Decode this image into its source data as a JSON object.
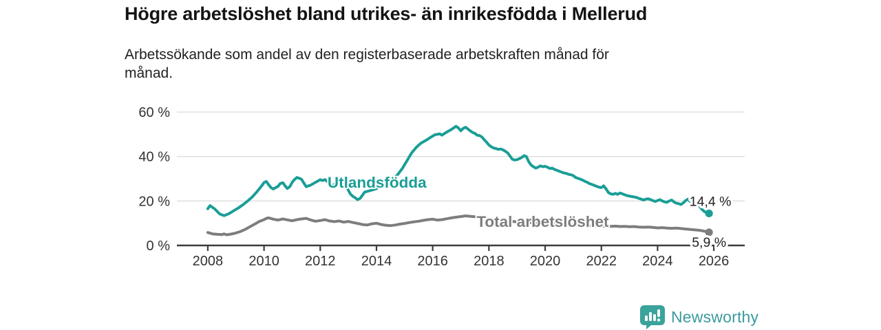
{
  "header": {
    "title": "Högre arbetslöshet bland utrikes- än inrikesfödda i Mellerud",
    "subtitle_line1": "Arbetssökande som andel av den registerbaserade arbetskraften månad för",
    "subtitle_line2": "månad."
  },
  "chart_data": {
    "type": "line",
    "title": "Högre arbetslöshet bland utrikes- än inrikesfödda i Mellerud",
    "subtitle": "Arbetssökande som andel av den registerbaserade arbetskraften månad för månad.",
    "xlabel": "",
    "ylabel": "",
    "xlim": [
      2006.9,
      2027.1
    ],
    "ylim": [
      0,
      60
    ],
    "grid": "horizontal",
    "legend": "inline-labels",
    "x_ticks": [
      2008,
      2010,
      2012,
      2014,
      2016,
      2018,
      2020,
      2022,
      2024,
      2026
    ],
    "y_ticks": [
      {
        "value": 0,
        "label": "0 %"
      },
      {
        "value": 20,
        "label": "20 %"
      },
      {
        "value": 40,
        "label": "40 %"
      },
      {
        "value": 60,
        "label": "60 %"
      }
    ],
    "axis_color": "#3b3b3b",
    "grid_color": "#dcdcdc",
    "series": [
      {
        "name": "Utlandsfödda",
        "color": "#1a9e96",
        "end_label": "14,4 %",
        "end_value": 14.4,
        "end_label_position": "above",
        "label_pos": {
          "year": 2012.26,
          "pct": 26.0
        },
        "points": [
          [
            2008.0,
            16.5
          ],
          [
            2008.08,
            17.9
          ],
          [
            2008.25,
            16.4
          ],
          [
            2008.42,
            14.2
          ],
          [
            2008.58,
            13.4
          ],
          [
            2008.75,
            14.3
          ],
          [
            2008.92,
            15.6
          ],
          [
            2009.08,
            16.8
          ],
          [
            2009.25,
            18.3
          ],
          [
            2009.42,
            20.0
          ],
          [
            2009.58,
            21.8
          ],
          [
            2009.75,
            24.2
          ],
          [
            2009.92,
            26.8
          ],
          [
            2010.0,
            28.3
          ],
          [
            2010.08,
            28.8
          ],
          [
            2010.17,
            27.2
          ],
          [
            2010.25,
            26.0
          ],
          [
            2010.33,
            25.4
          ],
          [
            2010.5,
            26.6
          ],
          [
            2010.58,
            27.9
          ],
          [
            2010.67,
            28.2
          ],
          [
            2010.75,
            26.8
          ],
          [
            2010.83,
            25.6
          ],
          [
            2010.92,
            26.5
          ],
          [
            2011.0,
            28.4
          ],
          [
            2011.08,
            29.6
          ],
          [
            2011.17,
            30.6
          ],
          [
            2011.25,
            30.2
          ],
          [
            2011.33,
            29.8
          ],
          [
            2011.42,
            28.0
          ],
          [
            2011.5,
            26.4
          ],
          [
            2011.58,
            26.8
          ],
          [
            2011.67,
            27.2
          ],
          [
            2011.75,
            27.8
          ],
          [
            2011.83,
            28.4
          ],
          [
            2011.92,
            29.0
          ],
          [
            2012.0,
            29.6
          ],
          [
            2012.08,
            29.2
          ],
          [
            2012.17,
            29.6
          ],
          [
            2012.25,
            28.8
          ],
          [
            2012.33,
            27.6
          ],
          [
            2012.42,
            26.8
          ],
          [
            2012.5,
            27.4
          ],
          [
            2012.58,
            28.0
          ],
          [
            2012.67,
            28.4
          ],
          [
            2012.75,
            28.0
          ],
          [
            2012.83,
            28.6
          ],
          [
            2012.92,
            27.0
          ],
          [
            2013.0,
            24.8
          ],
          [
            2013.08,
            23.0
          ],
          [
            2013.17,
            22.0
          ],
          [
            2013.25,
            21.4
          ],
          [
            2013.33,
            20.6
          ],
          [
            2013.42,
            21.2
          ],
          [
            2013.5,
            22.6
          ],
          [
            2013.58,
            24.0
          ],
          [
            2013.75,
            24.6
          ],
          [
            2013.92,
            25.2
          ],
          [
            2014.08,
            26.0
          ],
          [
            2014.25,
            27.0
          ],
          [
            2014.42,
            28.2
          ],
          [
            2014.58,
            29.8
          ],
          [
            2014.75,
            31.8
          ],
          [
            2014.92,
            34.6
          ],
          [
            2015.08,
            38.0
          ],
          [
            2015.25,
            41.6
          ],
          [
            2015.42,
            44.2
          ],
          [
            2015.58,
            46.0
          ],
          [
            2015.75,
            47.2
          ],
          [
            2015.92,
            48.6
          ],
          [
            2016.08,
            49.8
          ],
          [
            2016.25,
            50.2
          ],
          [
            2016.33,
            49.6
          ],
          [
            2016.5,
            51.0
          ],
          [
            2016.67,
            52.2
          ],
          [
            2016.83,
            53.6
          ],
          [
            2016.92,
            52.8
          ],
          [
            2017.0,
            51.6
          ],
          [
            2017.08,
            52.6
          ],
          [
            2017.17,
            53.2
          ],
          [
            2017.25,
            52.4
          ],
          [
            2017.33,
            51.6
          ],
          [
            2017.42,
            50.8
          ],
          [
            2017.5,
            50.4
          ],
          [
            2017.58,
            49.6
          ],
          [
            2017.67,
            49.4
          ],
          [
            2017.75,
            48.8
          ],
          [
            2017.83,
            47.6
          ],
          [
            2017.92,
            46.4
          ],
          [
            2018.0,
            45.2
          ],
          [
            2018.08,
            44.4
          ],
          [
            2018.17,
            43.8
          ],
          [
            2018.25,
            43.6
          ],
          [
            2018.33,
            43.2
          ],
          [
            2018.42,
            43.4
          ],
          [
            2018.5,
            43.0
          ],
          [
            2018.58,
            42.4
          ],
          [
            2018.67,
            41.6
          ],
          [
            2018.75,
            40.2
          ],
          [
            2018.83,
            38.8
          ],
          [
            2018.92,
            38.4
          ],
          [
            2019.0,
            38.6
          ],
          [
            2019.08,
            39.0
          ],
          [
            2019.17,
            39.6
          ],
          [
            2019.25,
            40.4
          ],
          [
            2019.33,
            40.0
          ],
          [
            2019.42,
            37.6
          ],
          [
            2019.5,
            36.2
          ],
          [
            2019.58,
            35.4
          ],
          [
            2019.67,
            34.8
          ],
          [
            2019.75,
            35.2
          ],
          [
            2019.83,
            35.8
          ],
          [
            2019.92,
            35.4
          ],
          [
            2020.0,
            35.6
          ],
          [
            2020.08,
            35.2
          ],
          [
            2020.17,
            34.6
          ],
          [
            2020.25,
            34.8
          ],
          [
            2020.33,
            34.2
          ],
          [
            2020.42,
            33.8
          ],
          [
            2020.5,
            33.4
          ],
          [
            2020.58,
            33.0
          ],
          [
            2020.67,
            32.6
          ],
          [
            2020.75,
            32.4
          ],
          [
            2020.83,
            32.0
          ],
          [
            2020.92,
            31.8
          ],
          [
            2021.0,
            31.4
          ],
          [
            2021.08,
            30.6
          ],
          [
            2021.17,
            30.2
          ],
          [
            2021.25,
            29.8
          ],
          [
            2021.33,
            29.4
          ],
          [
            2021.42,
            28.8
          ],
          [
            2021.5,
            28.4
          ],
          [
            2021.58,
            27.8
          ],
          [
            2021.67,
            27.4
          ],
          [
            2021.75,
            27.0
          ],
          [
            2021.83,
            26.6
          ],
          [
            2021.92,
            26.2
          ],
          [
            2022.0,
            26.0
          ],
          [
            2022.08,
            26.8
          ],
          [
            2022.17,
            25.4
          ],
          [
            2022.25,
            23.8
          ],
          [
            2022.33,
            23.2
          ],
          [
            2022.42,
            23.0
          ],
          [
            2022.5,
            23.4
          ],
          [
            2022.58,
            23.0
          ],
          [
            2022.67,
            23.6
          ],
          [
            2022.75,
            23.2
          ],
          [
            2022.83,
            22.8
          ],
          [
            2022.92,
            22.4
          ],
          [
            2023.0,
            22.2
          ],
          [
            2023.08,
            22.0
          ],
          [
            2023.17,
            21.8
          ],
          [
            2023.25,
            21.6
          ],
          [
            2023.33,
            21.2
          ],
          [
            2023.42,
            20.8
          ],
          [
            2023.5,
            20.4
          ],
          [
            2023.58,
            20.8
          ],
          [
            2023.67,
            21.0
          ],
          [
            2023.75,
            20.6
          ],
          [
            2023.83,
            20.2
          ],
          [
            2023.92,
            19.8
          ],
          [
            2024.0,
            20.2
          ],
          [
            2024.08,
            20.6
          ],
          [
            2024.17,
            20.0
          ],
          [
            2024.25,
            19.6
          ],
          [
            2024.33,
            19.4
          ],
          [
            2024.42,
            20.0
          ],
          [
            2024.5,
            20.4
          ],
          [
            2024.58,
            19.6
          ],
          [
            2024.67,
            19.0
          ],
          [
            2024.75,
            18.8
          ],
          [
            2024.83,
            18.4
          ],
          [
            2024.92,
            19.2
          ],
          [
            2025.0,
            20.2
          ],
          [
            2025.08,
            20.8
          ],
          [
            2025.17,
            19.6
          ],
          [
            2025.25,
            20.2
          ],
          [
            2025.33,
            19.4
          ],
          [
            2025.42,
            18.6
          ],
          [
            2025.5,
            17.4
          ],
          [
            2025.58,
            16.2
          ],
          [
            2025.67,
            15.2
          ],
          [
            2025.83,
            14.4
          ]
        ]
      },
      {
        "name": "Total arbetslöshet",
        "color": "#7d7d7d",
        "end_label": "5,9 %",
        "end_value": 5.9,
        "end_label_position": "below",
        "label_pos": {
          "year": 2017.56,
          "pct": 8.4
        },
        "points": [
          [
            2008.0,
            5.8
          ],
          [
            2008.17,
            5.2
          ],
          [
            2008.33,
            5.0
          ],
          [
            2008.5,
            4.9
          ],
          [
            2008.58,
            5.2
          ],
          [
            2008.67,
            4.8
          ],
          [
            2008.83,
            5.1
          ],
          [
            2009.0,
            5.6
          ],
          [
            2009.17,
            6.3
          ],
          [
            2009.33,
            7.2
          ],
          [
            2009.5,
            8.4
          ],
          [
            2009.67,
            9.6
          ],
          [
            2009.83,
            10.8
          ],
          [
            2010.0,
            11.6
          ],
          [
            2010.08,
            12.2
          ],
          [
            2010.17,
            12.4
          ],
          [
            2010.33,
            11.8
          ],
          [
            2010.5,
            11.4
          ],
          [
            2010.67,
            11.9
          ],
          [
            2010.83,
            11.5
          ],
          [
            2011.0,
            11.1
          ],
          [
            2011.17,
            11.6
          ],
          [
            2011.33,
            11.9
          ],
          [
            2011.5,
            12.2
          ],
          [
            2011.67,
            11.4
          ],
          [
            2011.83,
            10.9
          ],
          [
            2012.0,
            11.2
          ],
          [
            2012.17,
            11.6
          ],
          [
            2012.33,
            11.0
          ],
          [
            2012.5,
            10.7
          ],
          [
            2012.67,
            11.0
          ],
          [
            2012.83,
            10.5
          ],
          [
            2013.0,
            10.8
          ],
          [
            2013.17,
            10.3
          ],
          [
            2013.33,
            9.9
          ],
          [
            2013.5,
            9.4
          ],
          [
            2013.67,
            9.2
          ],
          [
            2013.83,
            9.7
          ],
          [
            2014.0,
            10.0
          ],
          [
            2014.17,
            9.4
          ],
          [
            2014.33,
            9.1
          ],
          [
            2014.5,
            8.9
          ],
          [
            2014.67,
            9.2
          ],
          [
            2014.83,
            9.6
          ],
          [
            2015.0,
            9.9
          ],
          [
            2015.17,
            10.3
          ],
          [
            2015.33,
            10.6
          ],
          [
            2015.5,
            10.9
          ],
          [
            2015.67,
            11.3
          ],
          [
            2015.83,
            11.6
          ],
          [
            2016.0,
            11.8
          ],
          [
            2016.17,
            11.4
          ],
          [
            2016.33,
            11.6
          ],
          [
            2016.5,
            12.0
          ],
          [
            2016.67,
            12.4
          ],
          [
            2016.83,
            12.7
          ],
          [
            2017.0,
            13.0
          ],
          [
            2017.17,
            13.3
          ],
          [
            2017.33,
            13.1
          ],
          [
            2017.5,
            12.9
          ],
          [
            2017.75,
            12.5
          ],
          [
            2018.0,
            12.0
          ],
          [
            2018.5,
            11.2
          ],
          [
            2019.0,
            10.6
          ],
          [
            2019.5,
            10.2
          ],
          [
            2020.0,
            10.0
          ],
          [
            2020.5,
            9.6
          ],
          [
            2021.0,
            9.2
          ],
          [
            2021.5,
            8.9
          ],
          [
            2022.0,
            8.7
          ],
          [
            2022.33,
            8.6
          ],
          [
            2022.5,
            8.7
          ],
          [
            2022.67,
            8.5
          ],
          [
            2022.83,
            8.6
          ],
          [
            2023.0,
            8.4
          ],
          [
            2023.17,
            8.5
          ],
          [
            2023.33,
            8.3
          ],
          [
            2023.5,
            8.2
          ],
          [
            2023.67,
            8.3
          ],
          [
            2023.83,
            8.1
          ],
          [
            2024.0,
            7.9
          ],
          [
            2024.17,
            8.0
          ],
          [
            2024.33,
            7.8
          ],
          [
            2024.5,
            7.7
          ],
          [
            2024.67,
            7.8
          ],
          [
            2024.83,
            7.6
          ],
          [
            2025.0,
            7.4
          ],
          [
            2025.17,
            7.2
          ],
          [
            2025.33,
            7.0
          ],
          [
            2025.5,
            6.8
          ],
          [
            2025.67,
            6.4
          ],
          [
            2025.83,
            5.9
          ]
        ]
      }
    ]
  },
  "footer": {
    "brand": "Newsworthy",
    "brand_text_color": "#3b9a9e",
    "brand_icon_color": "#3aa39b"
  }
}
